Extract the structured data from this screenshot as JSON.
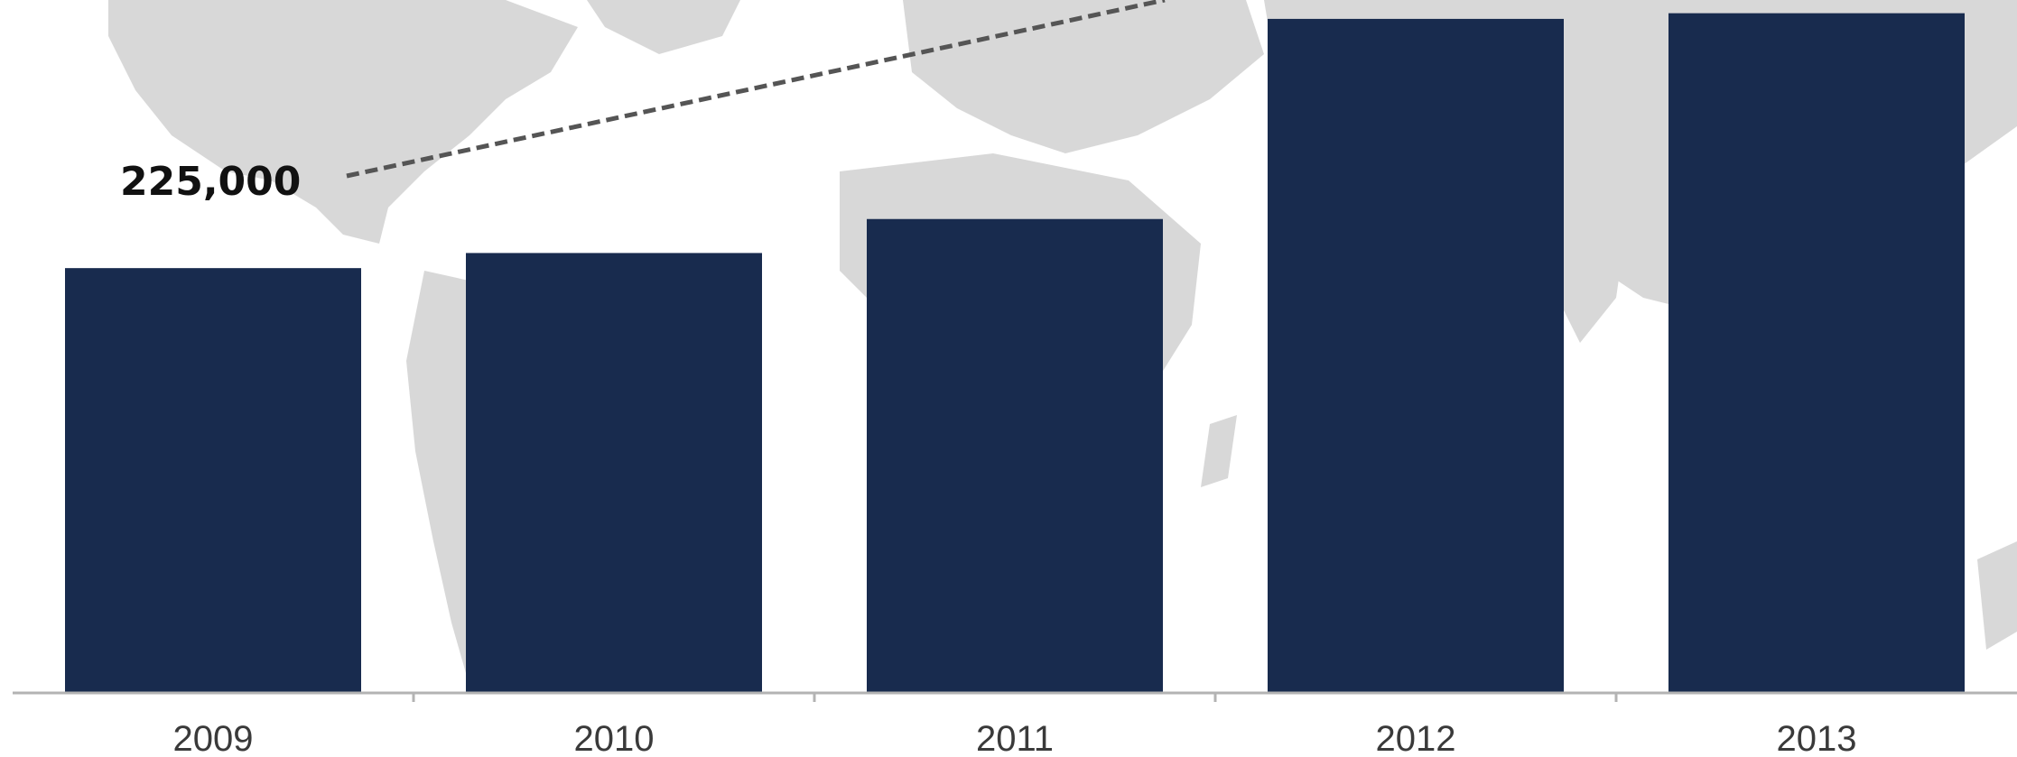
{
  "chart_data": {
    "type": "bar",
    "categories": [
      "2009",
      "2010",
      "2011",
      "2012",
      "2013"
    ],
    "values": [
      225000,
      233000,
      251000,
      357000,
      360000
    ],
    "ylim": [
      0,
      367000
    ],
    "annotations": [
      {
        "text": "225,000",
        "category": "2009",
        "style": "dashed-leader-line"
      }
    ],
    "grid": false,
    "legend": "none",
    "colors": {
      "bar": "#182b4e",
      "axis": "#b3b3b3",
      "leader_line": "#555555",
      "background_map": "#d8d8d8"
    }
  }
}
